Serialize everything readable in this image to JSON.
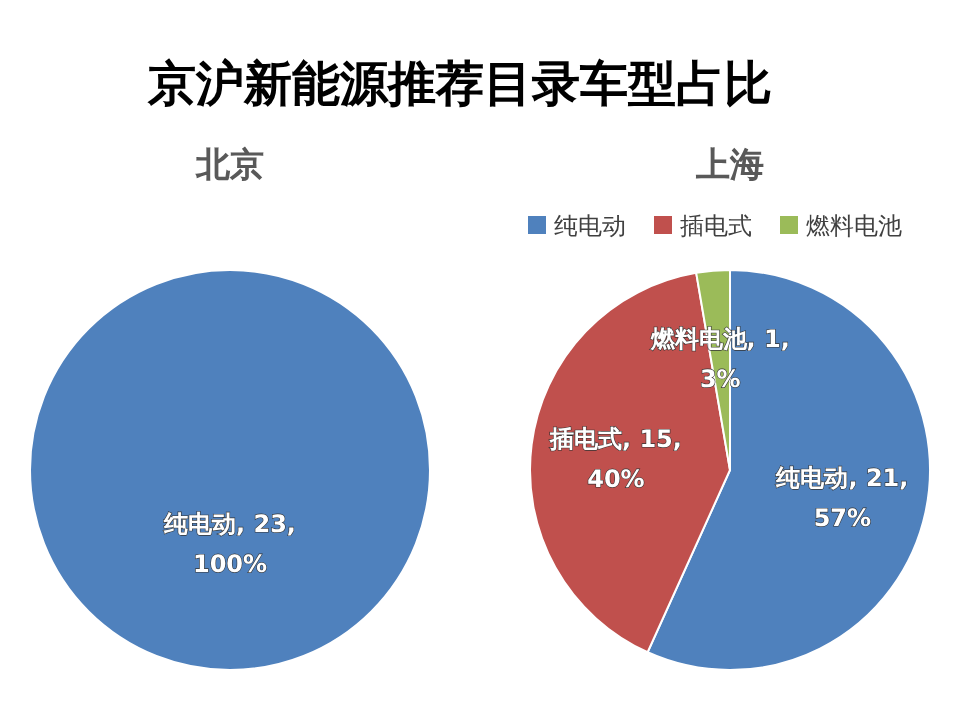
{
  "chart_data": [
    {
      "type": "other",
      "title": "京沪新能源推荐目录车型占比"
    },
    {
      "type": "pie",
      "title": "北京",
      "categories": [
        "纯电动"
      ],
      "values": [
        23
      ],
      "colors": [
        "#4f81bd"
      ],
      "value_labels": [
        ", 23, 100%"
      ],
      "legend": false
    },
    {
      "type": "pie",
      "title": "上海",
      "categories": [
        "纯电动",
        "插电式",
        "燃料电池"
      ],
      "values": [
        21,
        15,
        1
      ],
      "colors": [
        "#4f81bd",
        "#c0504d",
        "#9bbb59"
      ],
      "value_labels": [
        ", 21, 57%",
        ", 15, 40%",
        ", 1, 3%"
      ],
      "legend": "top"
    }
  ]
}
